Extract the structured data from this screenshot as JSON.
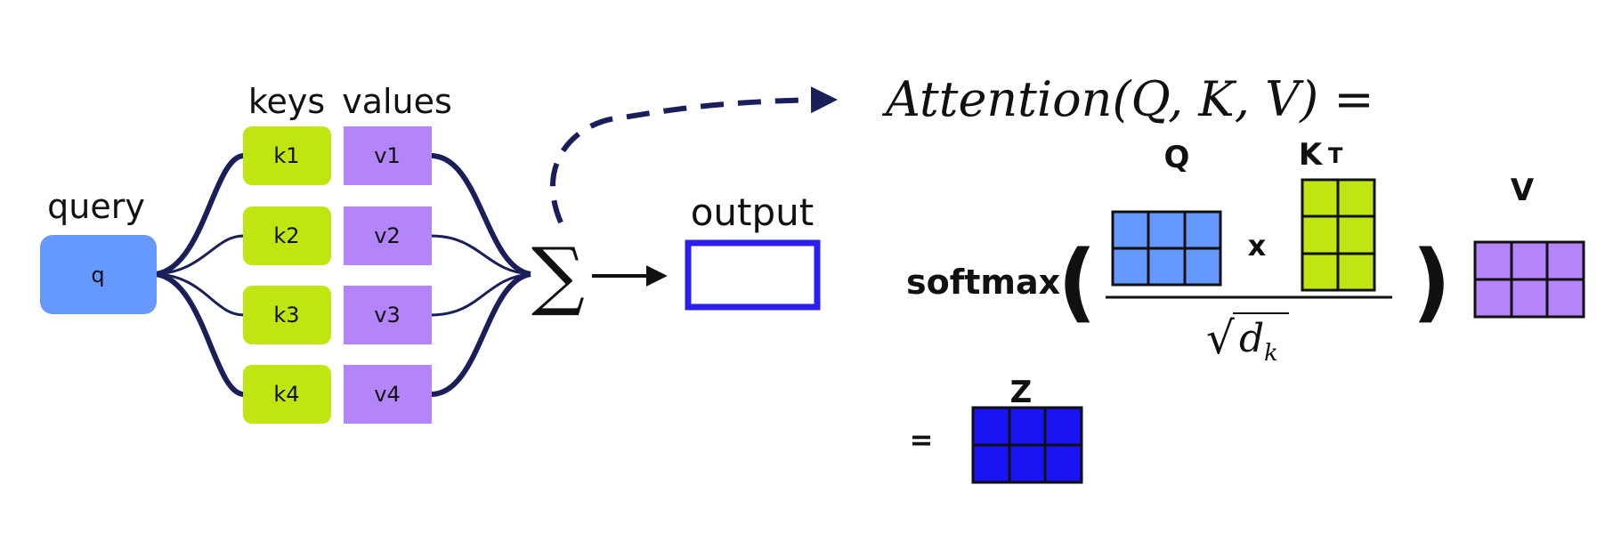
{
  "labels": {
    "query": "query",
    "keys": "keys",
    "values": "values",
    "output": "output"
  },
  "query_box": {
    "label": "q",
    "color": "#6699ff"
  },
  "keys": [
    {
      "label": "k1"
    },
    {
      "label": "k2"
    },
    {
      "label": "k3"
    },
    {
      "label": "k4"
    }
  ],
  "values": [
    {
      "label": "v1"
    },
    {
      "label": "v2"
    },
    {
      "label": "v3"
    },
    {
      "label": "v4"
    }
  ],
  "key_color": "#bfe611",
  "value_color": "#b384fa",
  "sum_symbol": "∑",
  "formula": {
    "lhs": "Attention(Q, K, V) =",
    "softmax": "softmax",
    "open_paren": "(",
    "close_paren": ")",
    "times": "x",
    "sqrt": "√",
    "denominator": "d",
    "denominator_sub": "k",
    "q_label": "Q",
    "k_label": "K",
    "k_sup": "T",
    "v_label": "V",
    "equals": "=",
    "z_label": "Z"
  },
  "colors": {
    "connector": "#1a1f5a",
    "output_border": "#2b1ff0",
    "q_matrix": "#6699ff",
    "k_matrix": "#bfe611",
    "v_matrix": "#b384fa",
    "z_matrix": "#1a14f5"
  }
}
